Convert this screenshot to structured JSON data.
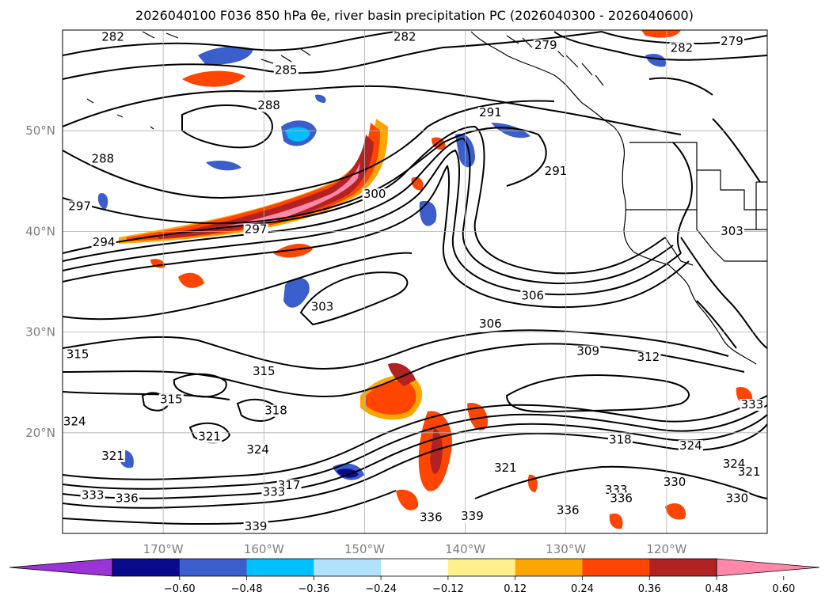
{
  "title": "2026040100 F036 850 hPa θe, river basin precipitation PC (2026040300 - 2026040600)",
  "map": {
    "lon_range": [
      -180,
      -110
    ],
    "lat_range": [
      10,
      60
    ],
    "lon_ticks": [
      {
        "value": -170,
        "label": "170°W"
      },
      {
        "value": -160,
        "label": "160°W"
      },
      {
        "value": -150,
        "label": "150°W"
      },
      {
        "value": -140,
        "label": "140°W"
      },
      {
        "value": -130,
        "label": "130°W"
      },
      {
        "value": -120,
        "label": "120°W"
      }
    ],
    "lat_ticks": [
      {
        "value": 20,
        "label": "20°N"
      },
      {
        "value": 30,
        "label": "30°N"
      },
      {
        "value": 40,
        "label": "40°N"
      },
      {
        "value": 50,
        "label": "50°N"
      }
    ],
    "contour_labels": [
      {
        "text": "282",
        "lon": -175,
        "lat": 59
      },
      {
        "text": "282",
        "lon": -146,
        "lat": 59
      },
      {
        "text": "279",
        "lon": -132,
        "lat": 58.2
      },
      {
        "text": "279",
        "lon": -113.5,
        "lat": 58.6
      },
      {
        "text": "282",
        "lon": -118.5,
        "lat": 57.9
      },
      {
        "text": "285",
        "lon": -157.8,
        "lat": 55.7
      },
      {
        "text": "288",
        "lon": -159.5,
        "lat": 52.2
      },
      {
        "text": "291",
        "lon": -137.5,
        "lat": 51.5
      },
      {
        "text": "291",
        "lon": -131,
        "lat": 45.7
      },
      {
        "text": "288",
        "lon": -176,
        "lat": 46.9
      },
      {
        "text": "297",
        "lon": -178.3,
        "lat": 42.2
      },
      {
        "text": "300",
        "lon": -149,
        "lat": 43.4
      },
      {
        "text": "297",
        "lon": -160.8,
        "lat": 39.9
      },
      {
        "text": "294",
        "lon": -175.9,
        "lat": 38.6
      },
      {
        "text": "303",
        "lon": -113.5,
        "lat": 39.7
      },
      {
        "text": "303",
        "lon": -154.2,
        "lat": 32.2
      },
      {
        "text": "306",
        "lon": -133.3,
        "lat": 33.3
      },
      {
        "text": "306",
        "lon": -137.5,
        "lat": 30.5
      },
      {
        "text": "309",
        "lon": -127.8,
        "lat": 27.8
      },
      {
        "text": "312",
        "lon": -121.8,
        "lat": 27.2
      },
      {
        "text": "315",
        "lon": -178.5,
        "lat": 27.5
      },
      {
        "text": "315",
        "lon": -160,
        "lat": 25.8
      },
      {
        "text": "315",
        "lon": -169.2,
        "lat": 23.0
      },
      {
        "text": "318",
        "lon": -158.8,
        "lat": 21.9
      },
      {
        "text": "324",
        "lon": -178.8,
        "lat": 20.8
      },
      {
        "text": "321",
        "lon": -165.4,
        "lat": 19.3
      },
      {
        "text": "321",
        "lon": -175,
        "lat": 17.4
      },
      {
        "text": "324",
        "lon": -160.6,
        "lat": 18
      },
      {
        "text": "317",
        "lon": -157.5,
        "lat": 14.5
      },
      {
        "text": "333",
        "lon": -177,
        "lat": 13.5
      },
      {
        "text": "336",
        "lon": -173.6,
        "lat": 13.2
      },
      {
        "text": "333",
        "lon": -159,
        "lat": 13.8
      },
      {
        "text": "339",
        "lon": -160.8,
        "lat": 10.4
      },
      {
        "text": "336",
        "lon": -143.4,
        "lat": 11.3
      },
      {
        "text": "321",
        "lon": -136,
        "lat": 16.2
      },
      {
        "text": "318",
        "lon": -124.6,
        "lat": 19
      },
      {
        "text": "324",
        "lon": -117.6,
        "lat": 18.4
      },
      {
        "text": "324",
        "lon": -113.3,
        "lat": 16.6
      },
      {
        "text": "330",
        "lon": -119.2,
        "lat": 14.8
      },
      {
        "text": "333",
        "lon": -125,
        "lat": 14
      },
      {
        "text": "336",
        "lon": -129.8,
        "lat": 12
      },
      {
        "text": "336",
        "lon": -124.5,
        "lat": 13.2
      },
      {
        "text": "339",
        "lon": -139.3,
        "lat": 11.4
      },
      {
        "text": "321",
        "lon": -111.8,
        "lat": 15.8
      },
      {
        "text": "330",
        "lon": -113,
        "lat": 13.2
      },
      {
        "text": "333",
        "lon": -111.5,
        "lat": 22.5
      }
    ]
  },
  "colorbar": {
    "colors": [
      "#9b34d8",
      "#0a0a8c",
      "#3a5fcd",
      "#00bfff",
      "#b0e2ff",
      "#ffffff",
      "#fff08c",
      "#ffa500",
      "#ff4500",
      "#b22222",
      "#ff88aa"
    ],
    "tick_labels": [
      "−0.60",
      "−0.48",
      "−0.36",
      "−0.24",
      "−0.12",
      "0.12",
      "0.24",
      "0.36",
      "0.48",
      "0.60"
    ]
  }
}
